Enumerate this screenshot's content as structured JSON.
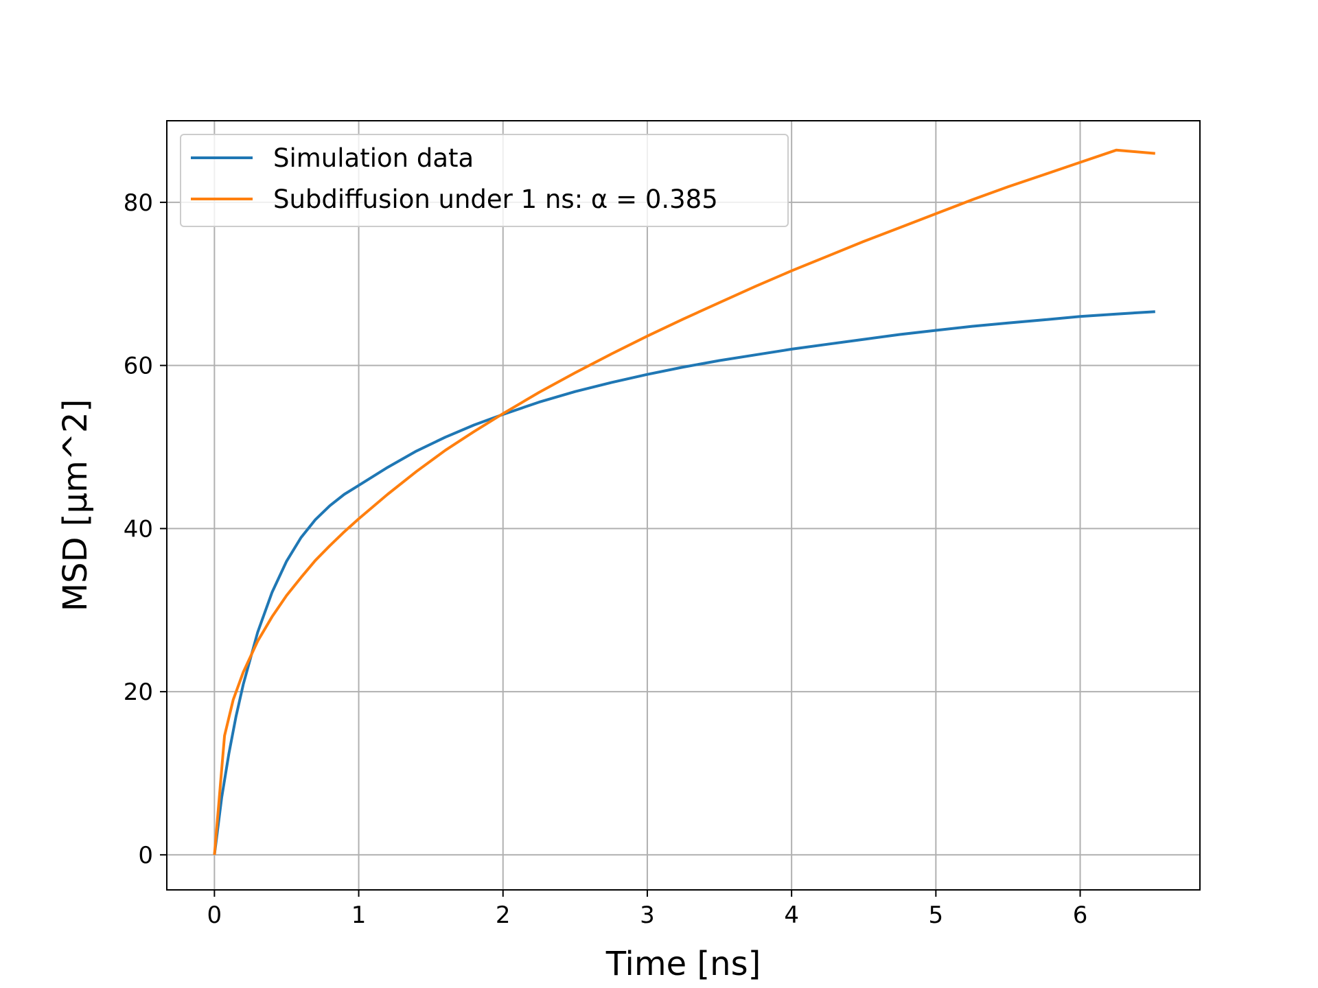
{
  "chart_data": {
    "type": "line",
    "title": "",
    "xlabel": "Time [ns]",
    "ylabel": "MSD [μm^2]",
    "xlim": [
      -0.33,
      6.83
    ],
    "ylim": [
      -4.3,
      90.0
    ],
    "xticks": [
      "0",
      "1",
      "2",
      "3",
      "4",
      "5",
      "6"
    ],
    "yticks": [
      "0",
      "20",
      "40",
      "60",
      "80"
    ],
    "grid": true,
    "legend_position": "upper-left",
    "series": [
      {
        "name": "Simulation data",
        "color": "#1f77b4",
        "x": [
          0,
          0.05,
          0.1,
          0.15,
          0.2,
          0.3,
          0.4,
          0.5,
          0.6,
          0.7,
          0.8,
          0.9,
          1.0,
          1.2,
          1.4,
          1.6,
          1.8,
          2.0,
          2.25,
          2.5,
          2.75,
          3.0,
          3.25,
          3.5,
          3.75,
          4.0,
          4.25,
          4.5,
          4.75,
          5.0,
          5.25,
          5.5,
          5.75,
          6.0,
          6.25,
          6.52
        ],
        "y": [
          0,
          7.0,
          12.4,
          17.0,
          20.9,
          27.3,
          32.2,
          36.0,
          38.9,
          41.1,
          42.8,
          44.2,
          45.3,
          47.5,
          49.5,
          51.2,
          52.7,
          54.0,
          55.5,
          56.8,
          57.9,
          58.9,
          59.8,
          60.6,
          61.3,
          62.0,
          62.6,
          63.2,
          63.8,
          64.3,
          64.8,
          65.2,
          65.6,
          66.0,
          66.3,
          66.6
        ]
      },
      {
        "name": "Subdiffusion under 1 ns: α = 0.385",
        "color": "#ff7f0e",
        "x": [
          0,
          0.07,
          0.13,
          0.2,
          0.3,
          0.4,
          0.5,
          0.6,
          0.7,
          0.8,
          0.9,
          1.0,
          1.2,
          1.4,
          1.6,
          1.8,
          2.0,
          2.25,
          2.5,
          2.75,
          3.0,
          3.25,
          3.5,
          3.75,
          4.0,
          4.25,
          4.5,
          4.75,
          5.0,
          5.25,
          5.5,
          5.75,
          6.0,
          6.25,
          6.52
        ],
        "y": [
          0,
          14.6,
          19.0,
          22.4,
          26.2,
          29.2,
          31.8,
          34.0,
          36.1,
          37.9,
          39.6,
          41.2,
          44.2,
          47.0,
          49.6,
          51.9,
          54.1,
          56.7,
          59.1,
          61.4,
          63.6,
          65.7,
          67.7,
          69.7,
          71.6,
          73.4,
          75.2,
          76.9,
          78.6,
          80.3,
          81.9,
          83.4,
          84.9,
          86.4,
          86.0
        ]
      }
    ]
  }
}
